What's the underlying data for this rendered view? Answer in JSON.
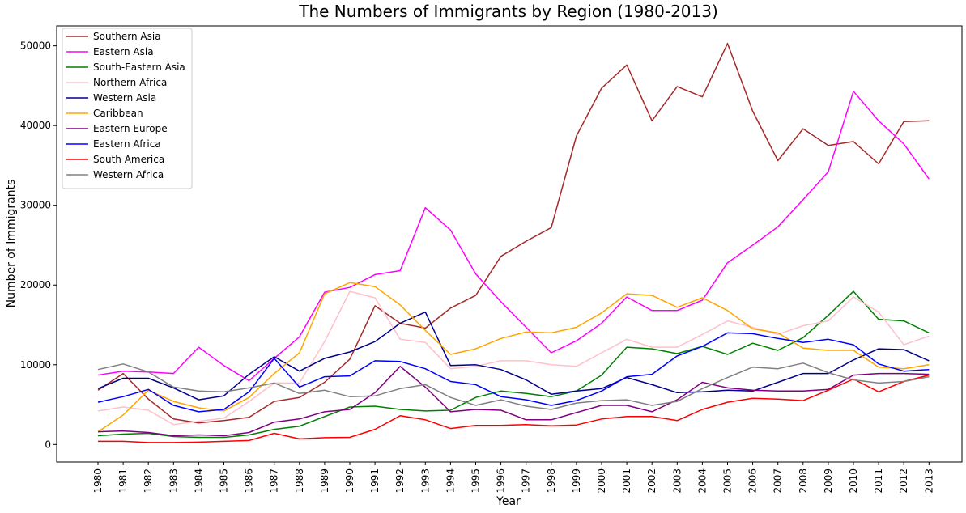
{
  "chart_data": {
    "type": "line",
    "title": "The Numbers of Immigrants by Region (1980-2013)",
    "xlabel": "Year",
    "ylabel": "Number of Immigrants",
    "ylim": [
      -2200,
      52500
    ],
    "yticks": [
      0,
      10000,
      20000,
      30000,
      40000,
      50000
    ],
    "grid": false,
    "legend_position": "upper-left",
    "x": [
      "1980",
      "1981",
      "1982",
      "1983",
      "1984",
      "1985",
      "1986",
      "1987",
      "1988",
      "1989",
      "1990",
      "1991",
      "1992",
      "1993",
      "1994",
      "1995",
      "1996",
      "1997",
      "1998",
      "1999",
      "2000",
      "2001",
      "2002",
      "2003",
      "2004",
      "2005",
      "2006",
      "2007",
      "2008",
      "2009",
      "2010",
      "2011",
      "2012",
      "2013"
    ],
    "series": [
      {
        "name": "Southern Asia",
        "color": "#a52a2a",
        "values": [
          6800,
          8900,
          5700,
          3200,
          2700,
          3000,
          3400,
          5400,
          5900,
          7800,
          10700,
          17400,
          15200,
          14600,
          17100,
          18700,
          23600,
          25500,
          27200,
          38700,
          44700,
          47600,
          40600,
          44900,
          43600,
          50300,
          41800,
          35600,
          39600,
          37500,
          38000,
          35200,
          40500,
          40600
        ]
      },
      {
        "name": "Eastern Asia",
        "color": "#ff00ff",
        "values": [
          8700,
          9200,
          9100,
          8900,
          12200,
          9900,
          8000,
          10800,
          13500,
          19100,
          19700,
          21300,
          21800,
          29700,
          26900,
          21400,
          17900,
          14700,
          11500,
          13000,
          15200,
          18500,
          16800,
          16800,
          18100,
          22800,
          25000,
          27300,
          30700,
          34200,
          44300,
          40600,
          37700,
          33300
        ]
      },
      {
        "name": "South-Eastern Asia",
        "color": "#008000",
        "values": [
          1100,
          1300,
          1400,
          1000,
          900,
          900,
          1200,
          1900,
          2300,
          3500,
          4700,
          4800,
          4400,
          4200,
          4300,
          5900,
          6700,
          6400,
          6000,
          6700,
          8700,
          12200,
          12000,
          11400,
          12300,
          11300,
          12700,
          11800,
          13400,
          16200,
          19200,
          15700,
          15500,
          14000
        ]
      },
      {
        "name": "Northern Africa",
        "color": "#ffc0cb",
        "values": [
          4200,
          4700,
          4300,
          2500,
          2900,
          3300,
          5400,
          7700,
          7700,
          12900,
          19200,
          18400,
          13200,
          12800,
          9500,
          9800,
          10500,
          10500,
          10000,
          9800,
          11500,
          13200,
          12200,
          12200,
          13800,
          15500,
          14700,
          13800,
          14900,
          15500,
          18500,
          16600,
          12500,
          13600
        ]
      },
      {
        "name": "Western Asia",
        "color": "#00008b",
        "values": [
          7000,
          8300,
          8300,
          7100,
          5600,
          6100,
          8800,
          11000,
          9200,
          10800,
          11600,
          12900,
          15200,
          16600,
          9900,
          10000,
          9400,
          8100,
          6300,
          6700,
          7000,
          8400,
          7500,
          6500,
          6600,
          6800,
          6700,
          7800,
          8900,
          8900,
          10600,
          12000,
          11900,
          10500
        ]
      },
      {
        "name": "Caribbean",
        "color": "#ffa500",
        "values": [
          1600,
          3700,
          6800,
          5400,
          4600,
          4200,
          5900,
          8900,
          11500,
          18900,
          20300,
          19800,
          17500,
          14300,
          11300,
          12000,
          13300,
          14100,
          14000,
          14700,
          16500,
          18900,
          18700,
          17200,
          18400,
          16800,
          14500,
          14000,
          12100,
          11800,
          11800,
          9700,
          9500,
          10000
        ]
      },
      {
        "name": "Eastern Europe",
        "color": "#800080",
        "values": [
          1600,
          1700,
          1500,
          1100,
          1200,
          1100,
          1500,
          2800,
          3200,
          4100,
          4400,
          6500,
          9800,
          7200,
          4100,
          4400,
          4300,
          3100,
          3100,
          4000,
          4900,
          4900,
          4100,
          5600,
          7800,
          7100,
          6800,
          6700,
          6700,
          6900,
          8700,
          8900,
          8900,
          8800
        ]
      },
      {
        "name": "Eastern Africa",
        "color": "#0000ff",
        "values": [
          5300,
          6000,
          6900,
          4900,
          4100,
          4400,
          6600,
          10800,
          7200,
          8500,
          8600,
          10500,
          10400,
          9500,
          7900,
          7500,
          6000,
          5600,
          4900,
          5500,
          6700,
          8500,
          8800,
          11100,
          12300,
          14000,
          13900,
          13300,
          12800,
          13200,
          12500,
          10100,
          9200,
          9400
        ]
      },
      {
        "name": "South America",
        "color": "#ff0000",
        "values": [
          400,
          400,
          250,
          250,
          300,
          400,
          500,
          1400,
          700,
          850,
          900,
          1900,
          3600,
          3100,
          2000,
          2400,
          2400,
          2500,
          2350,
          2450,
          3200,
          3500,
          3500,
          3000,
          4400,
          5300,
          5800,
          5700,
          5500,
          6800,
          8200,
          6600,
          7900,
          8700
        ]
      },
      {
        "name": "Western Africa",
        "color": "#808080",
        "values": [
          9400,
          10100,
          9100,
          7200,
          6700,
          6600,
          7100,
          7700,
          6400,
          6800,
          6000,
          6100,
          7000,
          7500,
          5900,
          4900,
          5600,
          4800,
          4400,
          5200,
          5500,
          5600,
          4900,
          5400,
          7000,
          8400,
          9700,
          9500,
          10200,
          9000,
          8100,
          7700,
          7900,
          8500
        ]
      }
    ]
  }
}
